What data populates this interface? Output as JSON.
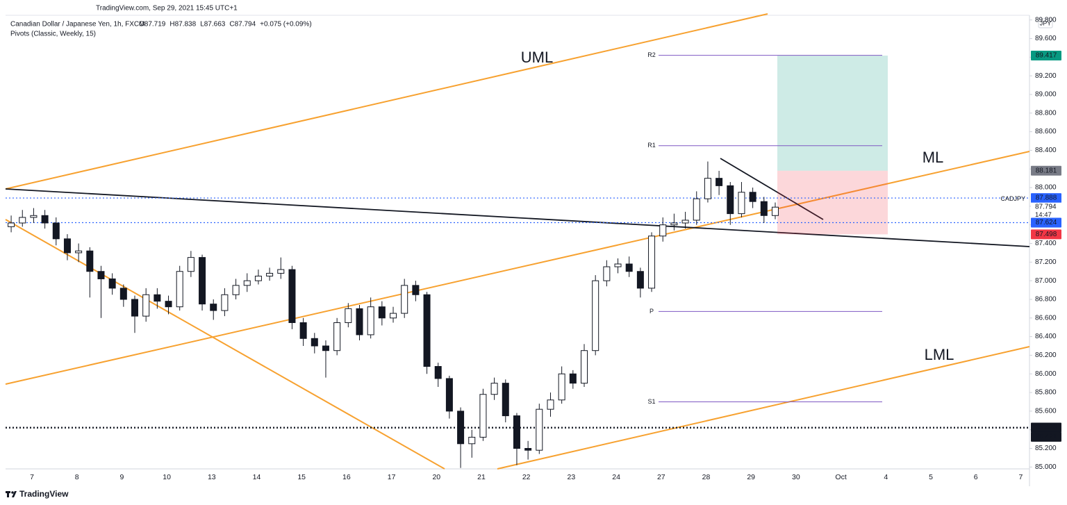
{
  "header": {
    "source": "TradingView.com, Sep 29, 2021 15:45 UTC+1",
    "symbol": "Canadian Dollar / Japanese Yen, 1h, FXCM",
    "ohlc": [
      "O87.719",
      "H87.838",
      "L87.663",
      "C87.794",
      "+0.075 (+0.09%)"
    ],
    "indicator": "Pivots (Classic, Weekly, 15)",
    "currency": "JPY"
  },
  "chart_data": {
    "type": "candlestick",
    "categories": [
      "7",
      "8",
      "9",
      "10",
      "13",
      "14",
      "15",
      "16",
      "17",
      "20",
      "21",
      "22",
      "23",
      "24",
      "27",
      "28",
      "29",
      "30",
      "Oct",
      "4",
      "5",
      "6",
      "7"
    ],
    "open": [
      87.58,
      87.62,
      87.68,
      87.7,
      87.62,
      87.45,
      87.3,
      87.32,
      87.1,
      87.02,
      86.92,
      86.8,
      86.62,
      86.85,
      86.78,
      86.72,
      87.1,
      87.25,
      86.75,
      86.68,
      86.85,
      86.95,
      87.0,
      87.05,
      87.08,
      87.12,
      86.55,
      86.38,
      86.3,
      86.25,
      86.55,
      86.7,
      86.42,
      86.72,
      86.6,
      86.65,
      86.95,
      86.85,
      86.08,
      85.95,
      85.6,
      85.25,
      85.32,
      85.78,
      85.9,
      85.55,
      85.2,
      85.18,
      85.62,
      85.72,
      86.0,
      85.9,
      86.25,
      87.0,
      87.15,
      87.18,
      87.1,
      86.92,
      87.48,
      87.6,
      87.62,
      87.65,
      87.88,
      88.1,
      88.02,
      87.72,
      87.95,
      87.85,
      87.7
    ],
    "high": [
      87.7,
      87.76,
      87.78,
      87.76,
      87.68,
      87.5,
      87.4,
      87.36,
      87.16,
      87.08,
      86.96,
      86.84,
      86.92,
      86.92,
      86.84,
      87.16,
      87.32,
      87.28,
      86.8,
      86.92,
      87.02,
      87.08,
      87.12,
      87.14,
      87.25,
      87.16,
      86.6,
      86.44,
      86.36,
      86.6,
      86.76,
      86.74,
      86.82,
      86.78,
      86.72,
      87.02,
      87.0,
      86.88,
      86.12,
      85.98,
      85.64,
      85.4,
      85.84,
      85.96,
      85.94,
      85.58,
      85.28,
      85.68,
      85.8,
      86.08,
      86.04,
      86.32,
      87.06,
      87.22,
      87.24,
      87.26,
      87.14,
      87.52,
      87.68,
      87.72,
      87.74,
      87.96,
      88.28,
      88.18,
      88.06,
      88.06,
      88.0,
      87.9,
      87.84
    ],
    "low": [
      87.52,
      87.58,
      87.62,
      87.56,
      87.38,
      87.22,
      87.2,
      86.82,
      86.6,
      86.85,
      86.72,
      86.44,
      86.56,
      86.7,
      86.64,
      86.68,
      87.04,
      86.68,
      86.58,
      86.62,
      86.8,
      86.88,
      86.96,
      87.0,
      87.02,
      86.48,
      86.3,
      86.22,
      85.96,
      86.2,
      86.5,
      86.36,
      86.38,
      86.52,
      86.55,
      86.6,
      86.78,
      86.0,
      85.86,
      85.52,
      84.99,
      85.1,
      85.28,
      85.72,
      85.48,
      85.02,
      85.08,
      85.14,
      85.54,
      85.68,
      85.84,
      85.86,
      86.2,
      86.94,
      87.08,
      87.04,
      86.82,
      86.88,
      87.42,
      87.54,
      87.56,
      87.6,
      87.84,
      87.92,
      87.6,
      87.68,
      87.78,
      87.62,
      87.66
    ],
    "close": [
      87.62,
      87.68,
      87.7,
      87.62,
      87.45,
      87.3,
      87.32,
      87.1,
      87.02,
      86.92,
      86.8,
      86.62,
      86.85,
      86.78,
      86.72,
      87.1,
      87.25,
      86.75,
      86.68,
      86.85,
      86.95,
      87.0,
      87.05,
      87.08,
      87.12,
      86.55,
      86.38,
      86.3,
      86.25,
      86.55,
      86.7,
      86.42,
      86.72,
      86.6,
      86.65,
      86.95,
      86.85,
      86.08,
      85.95,
      85.6,
      85.25,
      85.32,
      85.78,
      85.9,
      85.55,
      85.2,
      85.18,
      85.62,
      85.72,
      86.0,
      85.9,
      86.25,
      87.0,
      87.15,
      87.18,
      87.1,
      86.92,
      87.48,
      87.6,
      87.62,
      87.65,
      87.88,
      88.1,
      88.02,
      87.72,
      87.95,
      87.85,
      87.7,
      87.79
    ],
    "up_color": "#ffffff",
    "down_color": "#131722",
    "ylim": [
      84.98,
      89.85
    ],
    "yticks": [
      {
        "value": 85.0,
        "label": "85.000"
      },
      {
        "value": 85.2,
        "label": "85.200"
      },
      {
        "value": 85.4,
        "label": "85.400"
      },
      {
        "value": 85.6,
        "label": "85.600"
      },
      {
        "value": 85.8,
        "label": "85.800"
      },
      {
        "value": 86.0,
        "label": "86.000"
      },
      {
        "value": 86.2,
        "label": "86.200"
      },
      {
        "value": 86.4,
        "label": "86.400"
      },
      {
        "value": 86.6,
        "label": "86.600"
      },
      {
        "value": 86.8,
        "label": "86.800"
      },
      {
        "value": 87.0,
        "label": "87.000"
      },
      {
        "value": 87.2,
        "label": "87.200"
      },
      {
        "value": 87.4,
        "label": "87.400"
      },
      {
        "value": 87.6,
        "label": "87.600"
      },
      {
        "value": 87.8,
        "label": "87.800"
      },
      {
        "value": 88.0,
        "label": "88.000"
      },
      {
        "value": 88.2,
        "label": "88.200"
      },
      {
        "value": 88.4,
        "label": "88.400"
      },
      {
        "value": 88.6,
        "label": "88.600"
      },
      {
        "value": 88.8,
        "label": "88.800"
      },
      {
        "value": 89.0,
        "label": "89.000"
      },
      {
        "value": 89.2,
        "label": "89.200"
      },
      {
        "value": 89.4,
        "label": "89.400"
      },
      {
        "value": 89.6,
        "label": "89.600"
      },
      {
        "value": 89.8,
        "label": "89.800"
      }
    ],
    "pivots": [
      {
        "label": "R2",
        "value": 89.42
      },
      {
        "label": "R1",
        "value": 88.45
      },
      {
        "label": "P",
        "value": 86.67
      },
      {
        "label": "S1",
        "value": 85.7
      }
    ],
    "pivot_color": "#7e57c2",
    "position": {
      "target": 89.417,
      "entry": 88.181,
      "stop": 87.498,
      "target_color": "#089981",
      "entry_color": "#787b86",
      "stop_color": "#f23645"
    },
    "horizontal_lines": [
      {
        "value": 87.888,
        "color": "#2962ff"
      },
      {
        "value": 87.624,
        "color": "#2962ff"
      },
      {
        "value": 85.424,
        "color": "#131722"
      },
      {
        "value": 85.421,
        "color": "#131722"
      }
    ],
    "last_price": {
      "symbol": "CADJPY",
      "value": 87.794,
      "countdown": "14:47"
    },
    "annotations": [
      "UML",
      "ML",
      "LML"
    ]
  },
  "footer": {
    "brand": "TradingView"
  }
}
